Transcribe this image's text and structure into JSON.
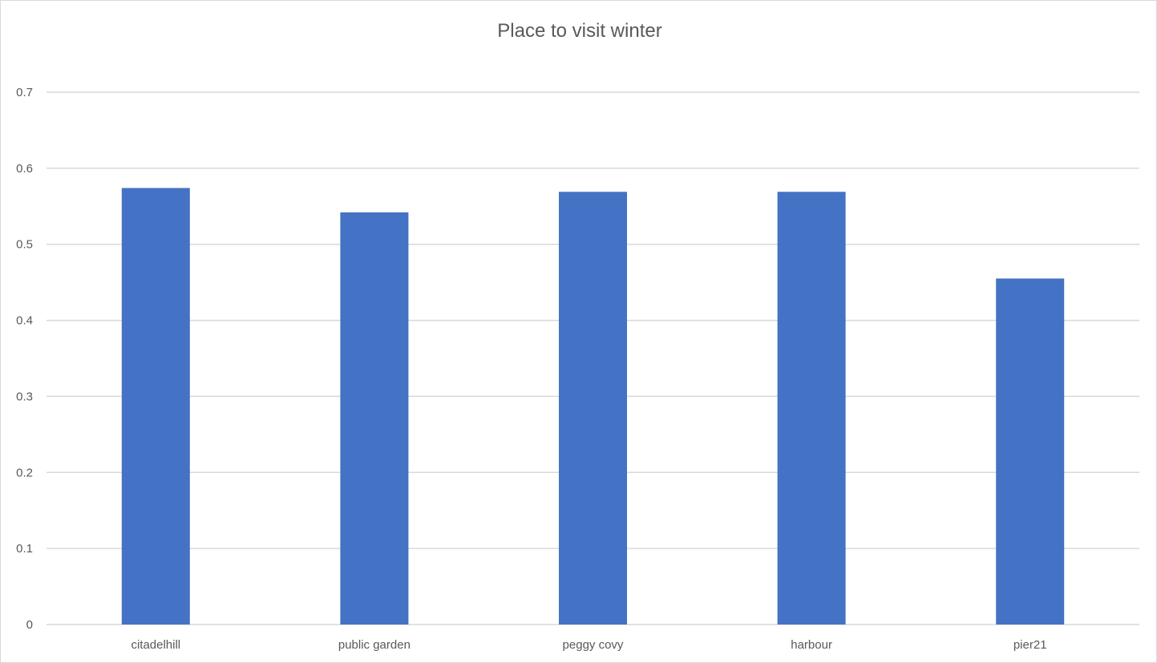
{
  "chart_data": {
    "type": "bar",
    "title": "Place to visit winter",
    "xlabel": "",
    "ylabel": "",
    "categories": [
      "citadelhill",
      "public garden",
      "peggy covy",
      "harbour",
      "pier21"
    ],
    "values": [
      0.574,
      0.542,
      0.569,
      0.569,
      0.455
    ],
    "ylim": [
      0,
      0.7
    ],
    "yticks": [
      "0",
      "0.1",
      "0.2",
      "0.3",
      "0.4",
      "0.5",
      "0.6",
      "0.7"
    ],
    "grid": true,
    "legend": "none",
    "bar_color": "#4472C4"
  }
}
